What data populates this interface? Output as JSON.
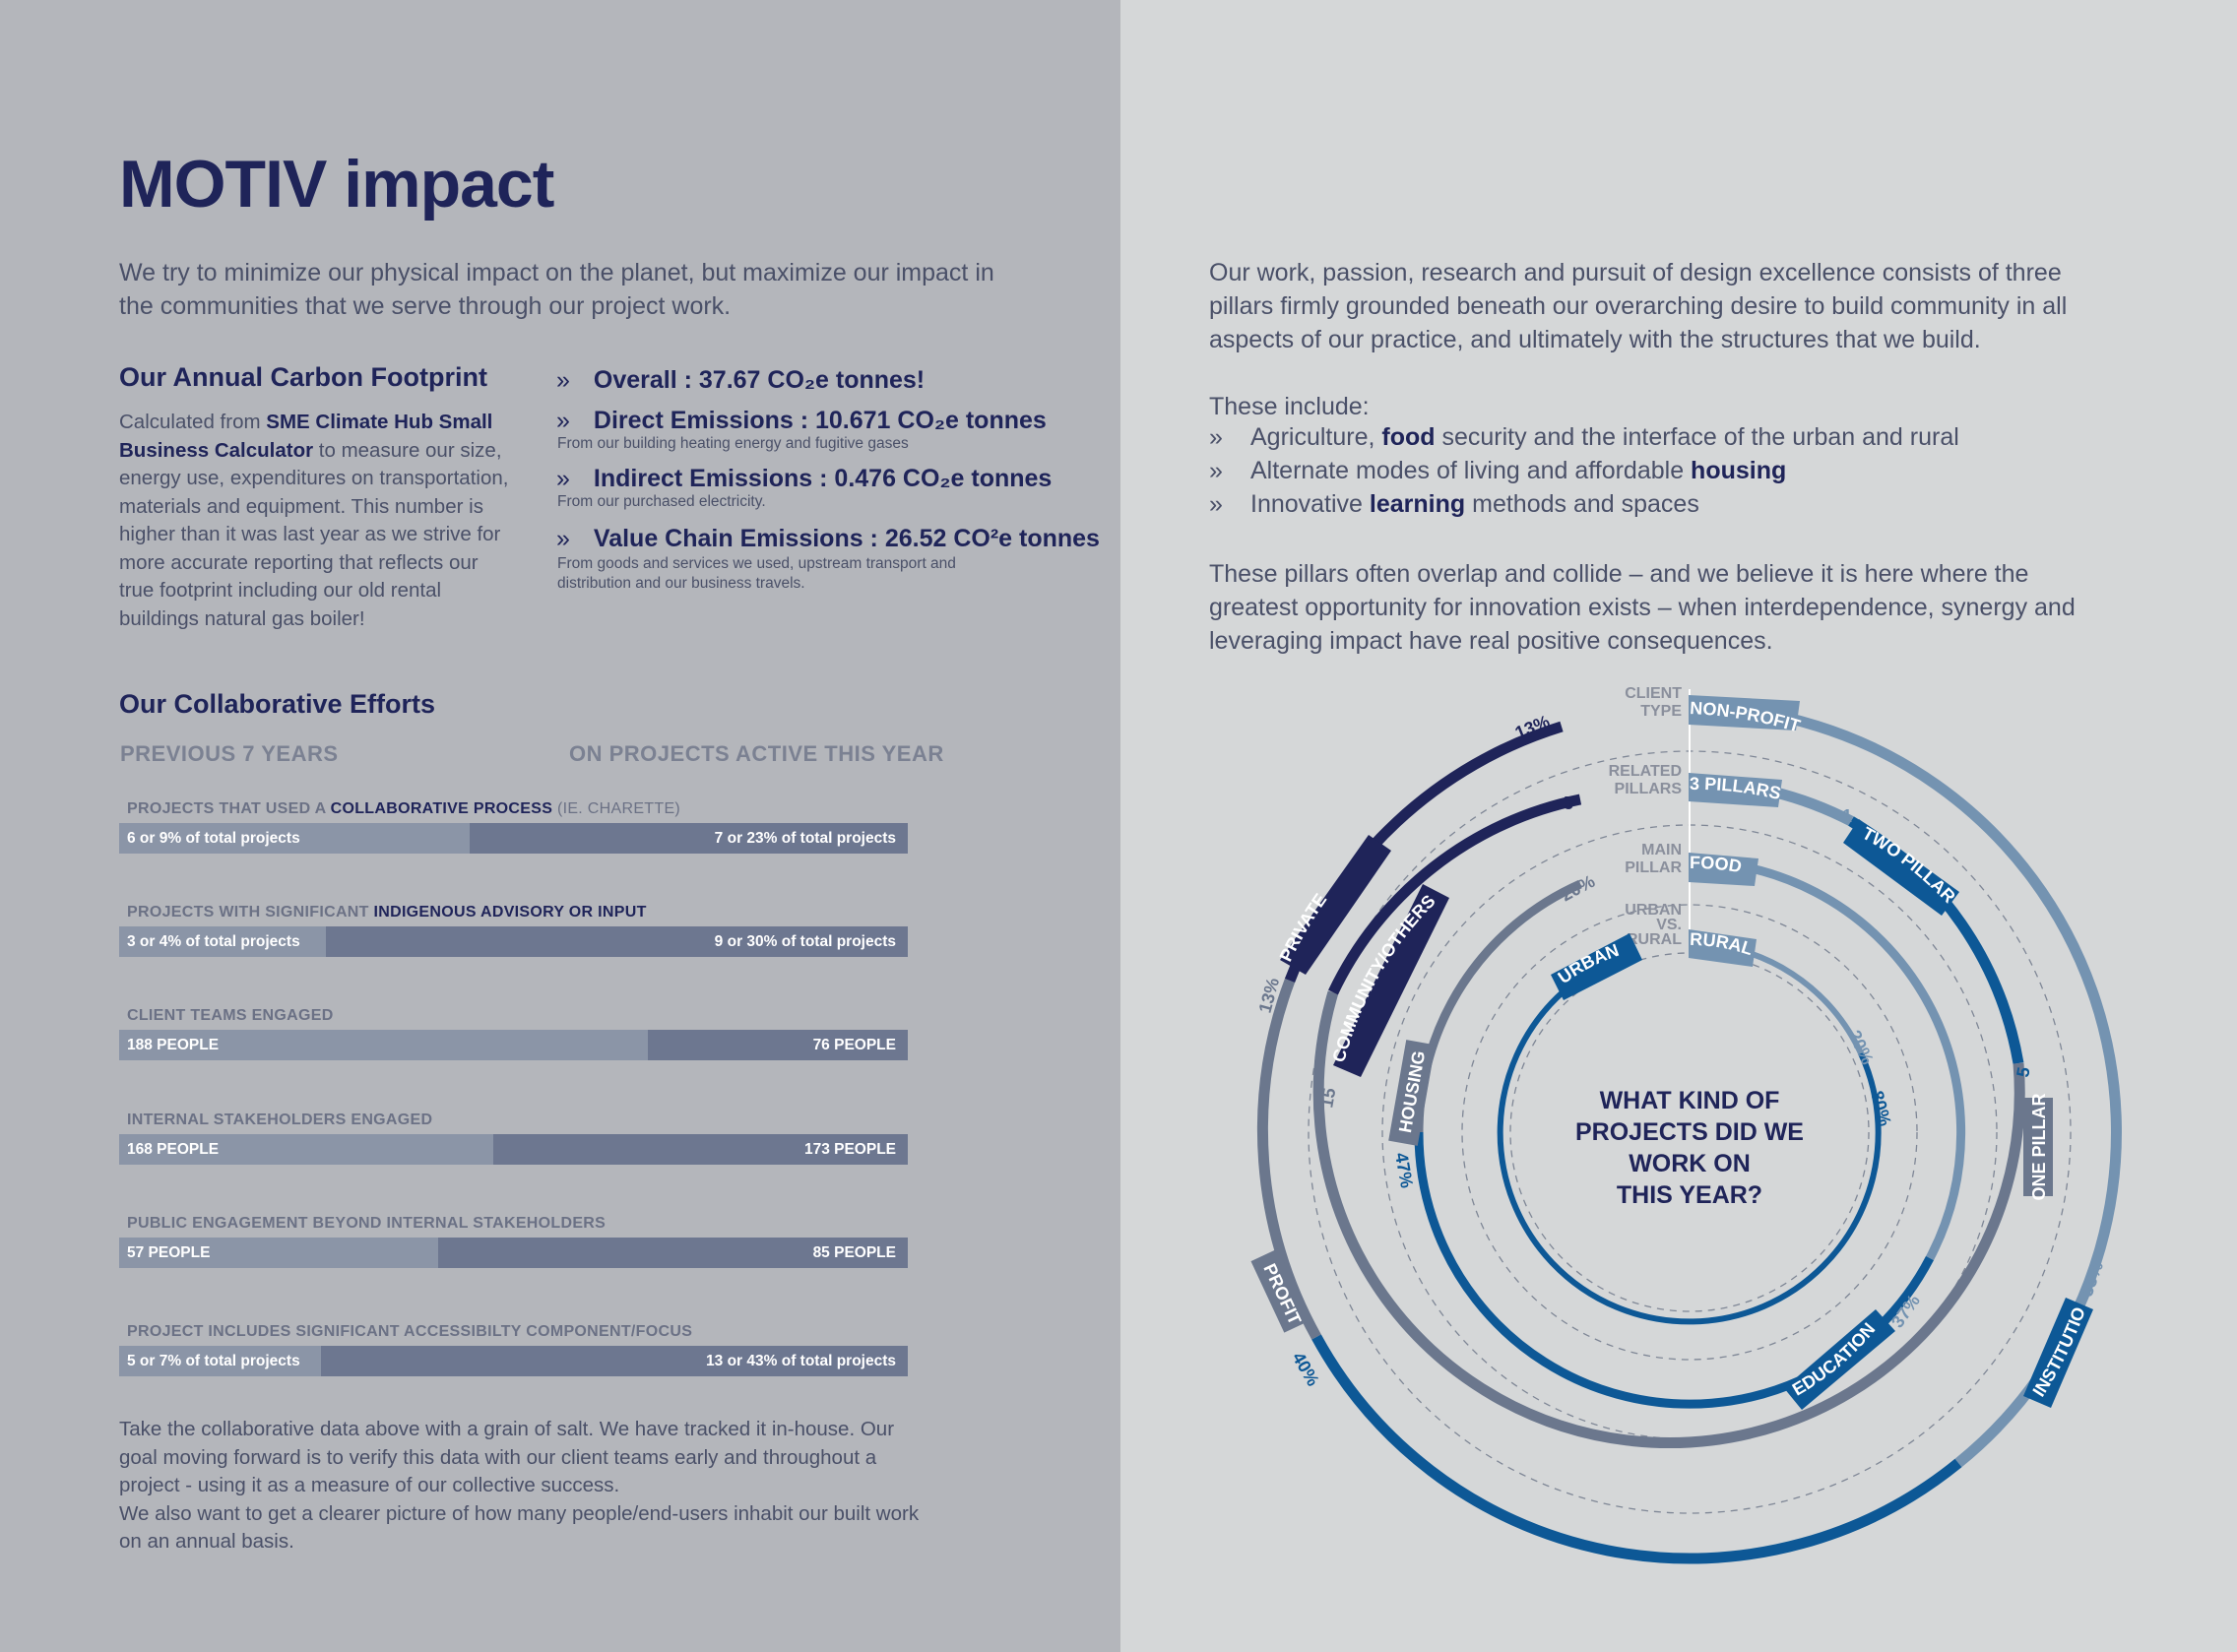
{
  "title": "MOTIV impact",
  "intro": "We try to minimize our physical impact on the planet, but maximize our impact in the communities that we serve through our project work.",
  "carbon": {
    "heading": "Our Annual Carbon Footprint",
    "desc_pre": "Calculated from ",
    "desc_link": "SME Climate Hub Small Business Calculator",
    "desc_post": " to measure our size, energy use, expenditures on transportation, materials and equipment. This number is higher than it was last year as we strive for more accurate reporting that reflects our true footprint including our old rental buildings natural gas boiler!",
    "chevron": "»",
    "items": [
      {
        "label": "Overall : 37.67 CO₂e tonnes!",
        "note": ""
      },
      {
        "label": "Direct Emissions : 10.671 CO₂e tonnes",
        "note": "From our building heating energy and fugitive gases"
      },
      {
        "label": "Indirect Emissions : 0.476 CO₂e tonnes",
        "note": "From our purchased electricity."
      },
      {
        "label": "Value Chain Emissions : 26.52 CO²e tonnes",
        "note": "From goods and services we used, upstream transport and distribution and our business travels."
      }
    ]
  },
  "collab": {
    "heading": "Our Collaborative Efforts",
    "col_prev": "PREVIOUS 7 YEARS",
    "col_active": "ON PROJECTS ACTIVE THIS YEAR",
    "metrics": [
      {
        "label_pre": "PROJECTS THAT USED A ",
        "label_hl": "COLLABORATIVE PROCESS",
        "label_post": " (IE. CHARETTE)",
        "prev": "6  or   9% of total projects",
        "active": "7  or   23% of total projects",
        "prev_share": 0.444
      },
      {
        "label_pre": "PROJECTS WITH SIGNIFICANT ",
        "label_hl": "INDIGENOUS ADVISORY OR INPUT",
        "label_post": "",
        "prev": "3  or   4% of total projects",
        "active": "9  or   30% of total projects",
        "prev_share": 0.262
      },
      {
        "label_pre": "CLIENT TEAMS ENGAGED",
        "label_hl": "",
        "label_post": "",
        "prev": "188 PEOPLE",
        "active": "76 PEOPLE",
        "prev_share": 0.67
      },
      {
        "label_pre": "INTERNAL STAKEHOLDERS ENGAGED",
        "label_hl": "",
        "label_post": "",
        "prev": "168  PEOPLE",
        "active": "173 PEOPLE",
        "prev_share": 0.475
      },
      {
        "label_pre": "PUBLIC ENGAGEMENT BEYOND INTERNAL STAKEHOLDERS",
        "label_hl": "",
        "label_post": "",
        "prev": "57 PEOPLE",
        "active": "85 PEOPLE",
        "prev_share": 0.404
      },
      {
        "label_pre": "PROJECT INCLUDES SIGNIFICANT ACCESSIBILTY COMPONENT/FOCUS",
        "label_hl": "",
        "label_post": "",
        "prev": "5  or   7% of total projects",
        "active": "13  or   43% of total projects",
        "prev_share": 0.256
      }
    ]
  },
  "outro": "Take the collaborative data above with a grain of salt. We have tracked it in-house. Our goal moving forward is to verify this data with our client teams early and throughout a project - using it as a measure of our collective success.",
  "outro2": "We also want to get a clearer picture of how many people/end-users inhabit our built work on an annual basis.",
  "right": {
    "para1": "Our work, passion, research and pursuit of design excellence consists of three pillars firmly grounded beneath our overarching desire to build community in all aspects of our practice, and ultimately with the structures that we build.",
    "these_include": "These include:",
    "bullets": [
      {
        "pre": "Agriculture, ",
        "bold": "food",
        "post": " security and the interface of the urban and rural"
      },
      {
        "pre": "Alternate modes of living and affordable ",
        "bold": "housing",
        "post": ""
      },
      {
        "pre": "Innovative ",
        "bold": "learning",
        "post": " methods and spaces"
      }
    ],
    "para2": "These pillars often overlap and collide – and we believe it is here where the greatest opportunity for innovation exists – when interdependence, synergy and leveraging impact have real positive consequences."
  },
  "diagram": {
    "center_lines": [
      "WHAT KIND OF",
      "PROJECTS DID WE",
      "WORK ON",
      "THIS YEAR?"
    ],
    "ring_labels": [
      {
        "l1": "CLIENT",
        "l2": "TYPE",
        "tag": "NON-PROFIT"
      },
      {
        "l1": "RELATED",
        "l2": "PILLARS",
        "tag": "3 PILLARS"
      },
      {
        "l1": "MAIN",
        "l2": "PILLAR",
        "tag": "FOOD"
      },
      {
        "l1": "URBAN",
        "l2": "VS.",
        "l3": "RURAL",
        "tag": "RURAL"
      }
    ],
    "tags": {
      "private": "PRIVATE",
      "community": "COMMUNITY/OTHERS",
      "profit": "PROFIT",
      "institution": "INSTITUTION",
      "two_pillars": "TWO PILLARS",
      "one_pillar": "ONE PILLAR",
      "housing": "HOUSING",
      "education": "EDUCATION",
      "urban": "URBAN"
    },
    "numbers": {
      "n13a": "13%",
      "n5a": "5",
      "n13b": "13%",
      "n15": "15",
      "n40": "40%",
      "n33": "33%",
      "n1": "1",
      "n5b": "5",
      "n20a": "20%",
      "n47": "47%",
      "n37": "37%",
      "n20b": "20%",
      "n80": "80%"
    },
    "colors": {
      "navy": "#1f2459",
      "blue": "#0d5896",
      "steel": "#7493b1",
      "slate": "#6b778d",
      "white": "#ffffff"
    }
  }
}
